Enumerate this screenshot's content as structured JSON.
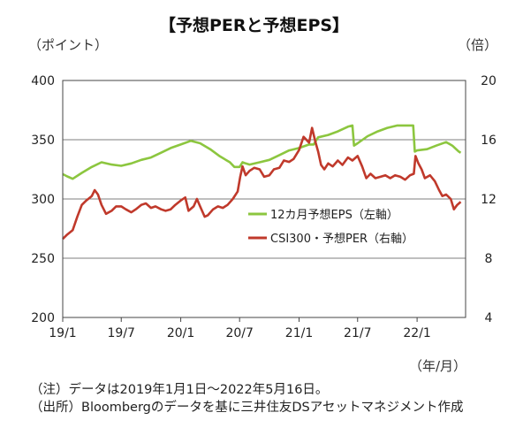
{
  "header": {
    "title": "【予想PERと予想EPS】",
    "left_unit": "（ポイント）",
    "right_unit": "（倍）",
    "x_unit": "（年/月）"
  },
  "notes": {
    "note": "（注）データは2019年1月1日～2022年5月16日。",
    "source": "（出所）Bloombergのデータを基に三井住友DSアセットマネジメント作成"
  },
  "chart_data": {
    "type": "line",
    "x_ticks": [
      "19/1",
      "19/7",
      "20/1",
      "20/7",
      "21/1",
      "21/7",
      "22/1"
    ],
    "y_left": {
      "ticks": [
        200,
        250,
        300,
        350,
        400
      ],
      "range": [
        200,
        400
      ]
    },
    "y_right": {
      "ticks": [
        4,
        8,
        12,
        16,
        20
      ],
      "range": [
        4,
        20
      ]
    },
    "grid": true,
    "legend_position": "center-right",
    "series": [
      {
        "name": "12カ月予想EPS（左軸）",
        "axis": "left",
        "color": "#8cc63f",
        "points": [
          [
            "2019-01-01",
            321
          ],
          [
            "2019-01-15",
            319
          ],
          [
            "2019-02-01",
            317
          ],
          [
            "2019-03-01",
            322
          ],
          [
            "2019-04-01",
            327
          ],
          [
            "2019-05-01",
            331
          ],
          [
            "2019-06-01",
            329
          ],
          [
            "2019-07-01",
            328
          ],
          [
            "2019-08-01",
            330
          ],
          [
            "2019-09-01",
            333
          ],
          [
            "2019-10-01",
            335
          ],
          [
            "2019-11-01",
            339
          ],
          [
            "2019-12-01",
            343
          ],
          [
            "2020-01-01",
            346
          ],
          [
            "2020-02-01",
            349
          ],
          [
            "2020-03-01",
            347
          ],
          [
            "2020-04-01",
            342
          ],
          [
            "2020-05-01",
            336
          ],
          [
            "2020-06-01",
            331
          ],
          [
            "2020-06-15",
            327
          ],
          [
            "2020-07-01",
            327
          ],
          [
            "2020-07-10",
            331
          ],
          [
            "2020-07-20",
            330
          ],
          [
            "2020-08-01",
            329
          ],
          [
            "2020-09-01",
            331
          ],
          [
            "2020-10-01",
            333
          ],
          [
            "2020-11-01",
            337
          ],
          [
            "2020-12-01",
            341
          ],
          [
            "2021-01-01",
            343
          ],
          [
            "2021-02-01",
            346
          ],
          [
            "2021-02-15",
            346
          ],
          [
            "2021-03-01",
            352
          ],
          [
            "2021-04-01",
            354
          ],
          [
            "2021-05-01",
            357
          ],
          [
            "2021-06-01",
            361
          ],
          [
            "2021-06-15",
            362
          ],
          [
            "2021-06-20",
            345
          ],
          [
            "2021-07-01",
            347
          ],
          [
            "2021-08-01",
            353
          ],
          [
            "2021-09-01",
            357
          ],
          [
            "2021-10-01",
            360
          ],
          [
            "2021-11-01",
            362
          ],
          [
            "2021-12-01",
            362
          ],
          [
            "2021-12-20",
            362
          ],
          [
            "2021-12-25",
            340
          ],
          [
            "2022-01-01",
            341
          ],
          [
            "2022-02-01",
            342
          ],
          [
            "2022-03-01",
            345
          ],
          [
            "2022-04-01",
            348
          ],
          [
            "2022-04-20",
            345
          ],
          [
            "2022-05-10",
            340
          ],
          [
            "2022-05-16",
            339
          ]
        ]
      },
      {
        "name": "CSI300・予想PER（右軸）",
        "axis": "right",
        "color": "#c0392b",
        "points": [
          [
            "2019-01-01",
            9.3
          ],
          [
            "2019-01-15",
            9.6
          ],
          [
            "2019-02-01",
            9.9
          ],
          [
            "2019-02-15",
            10.8
          ],
          [
            "2019-03-01",
            11.6
          ],
          [
            "2019-03-15",
            11.9
          ],
          [
            "2019-04-01",
            12.2
          ],
          [
            "2019-04-10",
            12.6
          ],
          [
            "2019-04-20",
            12.3
          ],
          [
            "2019-05-01",
            11.6
          ],
          [
            "2019-05-15",
            11.0
          ],
          [
            "2019-06-01",
            11.2
          ],
          [
            "2019-06-15",
            11.5
          ],
          [
            "2019-07-01",
            11.5
          ],
          [
            "2019-07-15",
            11.3
          ],
          [
            "2019-08-01",
            11.1
          ],
          [
            "2019-08-15",
            11.3
          ],
          [
            "2019-09-01",
            11.6
          ],
          [
            "2019-09-15",
            11.7
          ],
          [
            "2019-10-01",
            11.4
          ],
          [
            "2019-10-15",
            11.5
          ],
          [
            "2019-11-01",
            11.3
          ],
          [
            "2019-11-15",
            11.2
          ],
          [
            "2019-12-01",
            11.3
          ],
          [
            "2019-12-15",
            11.6
          ],
          [
            "2020-01-01",
            11.9
          ],
          [
            "2020-01-15",
            12.1
          ],
          [
            "2020-01-25",
            11.2
          ],
          [
            "2020-02-10",
            11.5
          ],
          [
            "2020-02-20",
            12.0
          ],
          [
            "2020-03-01",
            11.5
          ],
          [
            "2020-03-15",
            10.8
          ],
          [
            "2020-03-25",
            10.9
          ],
          [
            "2020-04-10",
            11.3
          ],
          [
            "2020-04-25",
            11.5
          ],
          [
            "2020-05-10",
            11.4
          ],
          [
            "2020-05-25",
            11.6
          ],
          [
            "2020-06-10",
            12.0
          ],
          [
            "2020-06-25",
            12.5
          ],
          [
            "2020-07-03",
            13.5
          ],
          [
            "2020-07-10",
            14.2
          ],
          [
            "2020-07-20",
            13.6
          ],
          [
            "2020-08-01",
            13.9
          ],
          [
            "2020-08-15",
            14.1
          ],
          [
            "2020-09-01",
            14.0
          ],
          [
            "2020-09-15",
            13.5
          ],
          [
            "2020-10-01",
            13.6
          ],
          [
            "2020-10-15",
            14.0
          ],
          [
            "2020-11-01",
            14.1
          ],
          [
            "2020-11-15",
            14.6
          ],
          [
            "2020-12-01",
            14.5
          ],
          [
            "2020-12-15",
            14.7
          ],
          [
            "2021-01-01",
            15.3
          ],
          [
            "2021-01-15",
            16.2
          ],
          [
            "2021-02-01",
            15.8
          ],
          [
            "2021-02-10",
            16.8
          ],
          [
            "2021-02-20",
            15.9
          ],
          [
            "2021-03-01",
            15.2
          ],
          [
            "2021-03-10",
            14.3
          ],
          [
            "2021-03-20",
            14.0
          ],
          [
            "2021-04-01",
            14.4
          ],
          [
            "2021-04-15",
            14.2
          ],
          [
            "2021-05-01",
            14.6
          ],
          [
            "2021-05-15",
            14.3
          ],
          [
            "2021-06-01",
            14.8
          ],
          [
            "2021-06-15",
            14.6
          ],
          [
            "2021-07-01",
            14.9
          ],
          [
            "2021-07-15",
            14.2
          ],
          [
            "2021-07-28",
            13.4
          ],
          [
            "2021-08-10",
            13.7
          ],
          [
            "2021-08-25",
            13.4
          ],
          [
            "2021-09-10",
            13.5
          ],
          [
            "2021-09-25",
            13.6
          ],
          [
            "2021-10-10",
            13.4
          ],
          [
            "2021-10-25",
            13.6
          ],
          [
            "2021-11-10",
            13.5
          ],
          [
            "2021-11-25",
            13.3
          ],
          [
            "2021-12-10",
            13.6
          ],
          [
            "2021-12-22",
            13.7
          ],
          [
            "2021-12-27",
            14.9
          ],
          [
            "2022-01-05",
            14.4
          ],
          [
            "2022-01-15",
            14.0
          ],
          [
            "2022-01-25",
            13.4
          ],
          [
            "2022-02-10",
            13.6
          ],
          [
            "2022-02-25",
            13.2
          ],
          [
            "2022-03-10",
            12.6
          ],
          [
            "2022-03-20",
            12.2
          ],
          [
            "2022-04-01",
            12.3
          ],
          [
            "2022-04-15",
            12.0
          ],
          [
            "2022-04-25",
            11.3
          ],
          [
            "2022-05-05",
            11.6
          ],
          [
            "2022-05-16",
            11.8
          ]
        ]
      }
    ]
  }
}
